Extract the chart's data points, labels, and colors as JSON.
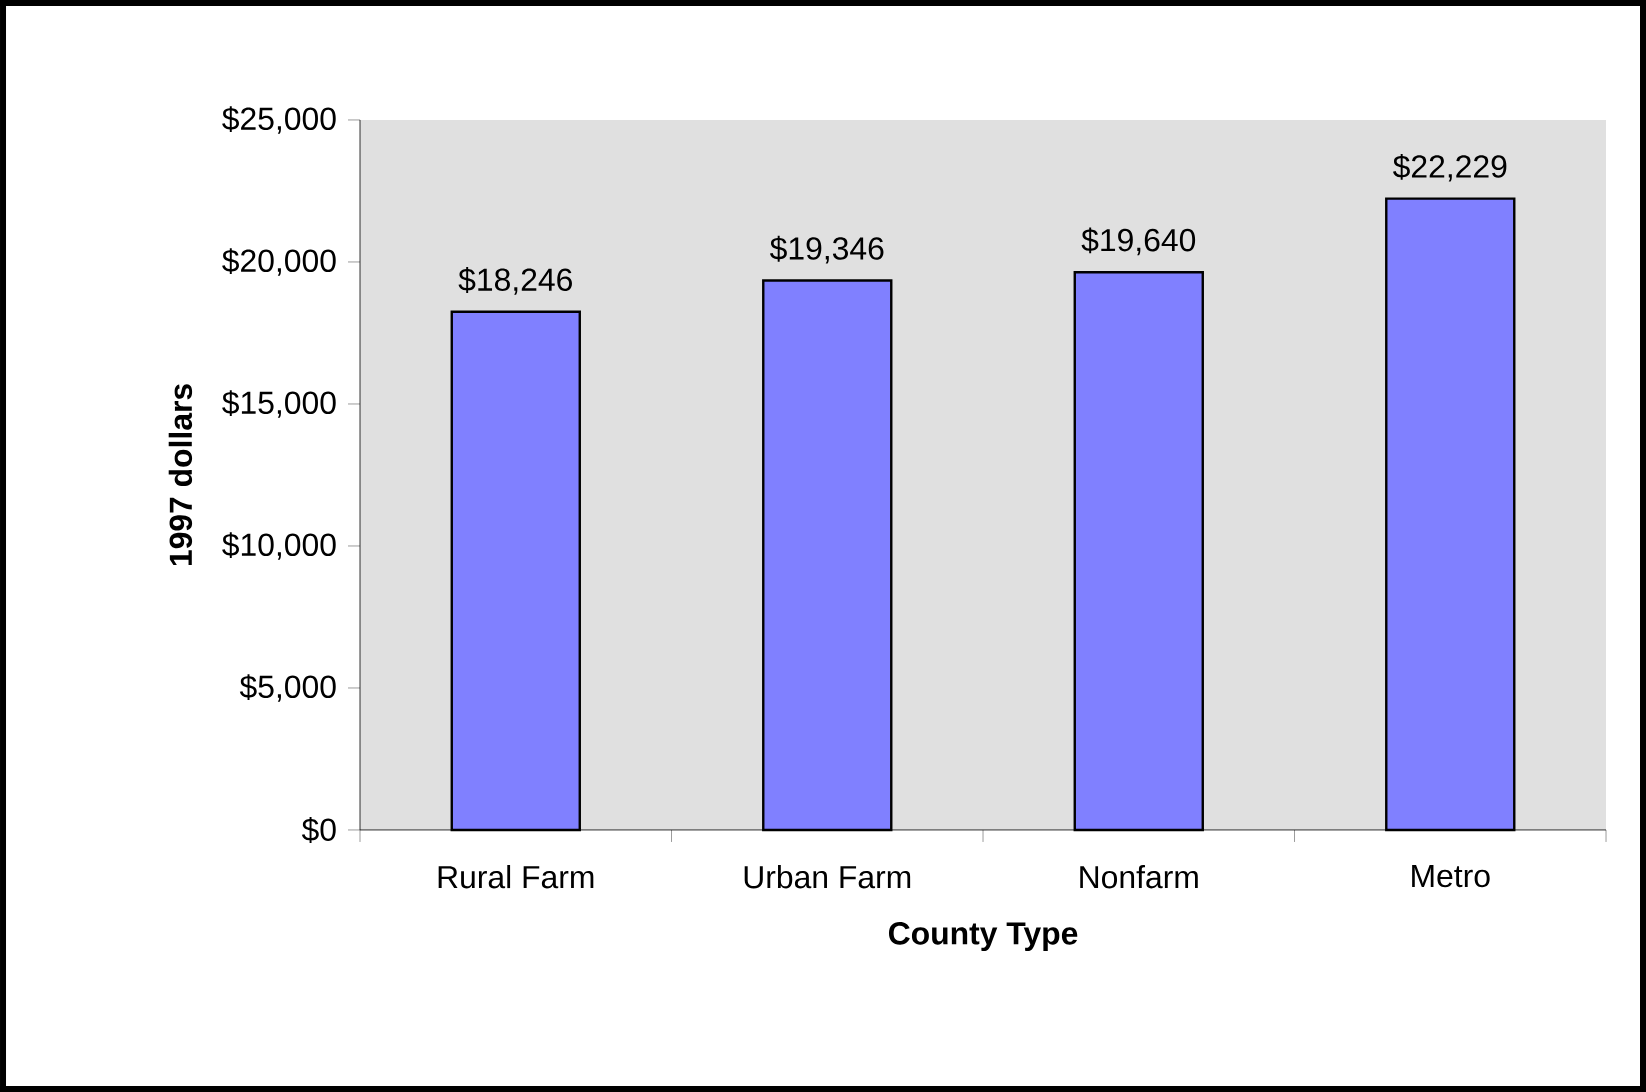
{
  "chart_data": {
    "type": "bar",
    "xlabel": "County Type",
    "ylabel": "1997 dollars",
    "categories": [
      "Rural Farm",
      "Urban Farm",
      "Nonfarm",
      "Metro"
    ],
    "values": [
      18246,
      19346,
      19640,
      22229
    ],
    "value_labels": [
      "$18,246",
      "$19,346",
      "$19,640",
      "$22,229"
    ],
    "color": "#8080ff",
    "ylim": [
      0,
      25000
    ],
    "yticks": [
      {
        "value": 0,
        "label": "$0"
      },
      {
        "value": 5000,
        "label": "$5,000"
      },
      {
        "value": 10000,
        "label": "$10,000"
      },
      {
        "value": 15000,
        "label": "$15,000"
      },
      {
        "value": 20000,
        "label": "$20,000"
      },
      {
        "value": 25000,
        "label": "$25,000"
      }
    ],
    "grid": false
  }
}
